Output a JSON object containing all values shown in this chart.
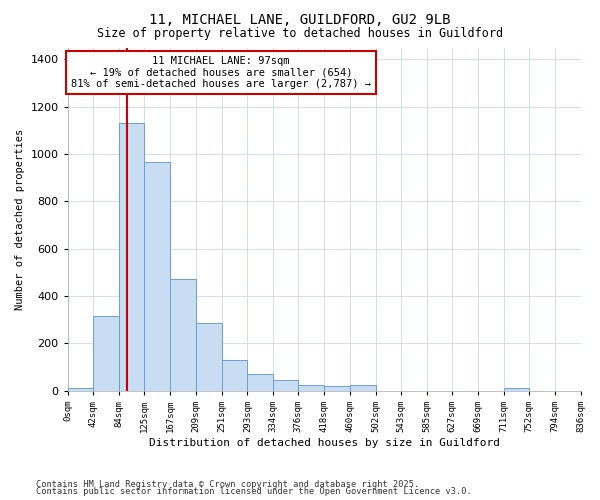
{
  "title": "11, MICHAEL LANE, GUILDFORD, GU2 9LB",
  "subtitle": "Size of property relative to detached houses in Guildford",
  "xlabel": "Distribution of detached houses by size in Guildford",
  "ylabel": "Number of detached properties",
  "footnote1": "Contains HM Land Registry data © Crown copyright and database right 2025.",
  "footnote2": "Contains public sector information licensed under the Open Government Licence v3.0.",
  "property_label": "11 MICHAEL LANE: 97sqm",
  "annotation_line1": "← 19% of detached houses are smaller (654)",
  "annotation_line2": "81% of semi-detached houses are larger (2,787) →",
  "property_size": 97,
  "bin_edges": [
    0,
    42,
    84,
    125,
    167,
    209,
    251,
    293,
    334,
    376,
    418,
    460,
    502,
    543,
    585,
    627,
    669,
    711,
    752,
    794,
    836
  ],
  "bar_heights": [
    10,
    315,
    1130,
    965,
    470,
    285,
    130,
    70,
    47,
    25,
    20,
    25,
    0,
    0,
    0,
    0,
    0,
    10,
    0,
    0
  ],
  "bar_color": "#c8ddf2",
  "bar_edge_color": "#6a9fd8",
  "redline_color": "#cc0000",
  "annotation_box_edge_color": "#cc0000",
  "annotation_box_face_color": "#ffffff",
  "background_color": "#ffffff",
  "grid_color": "#d0dff0",
  "ylim": [
    0,
    1450
  ],
  "yticks": [
    0,
    200,
    400,
    600,
    800,
    1000,
    1200,
    1400
  ]
}
